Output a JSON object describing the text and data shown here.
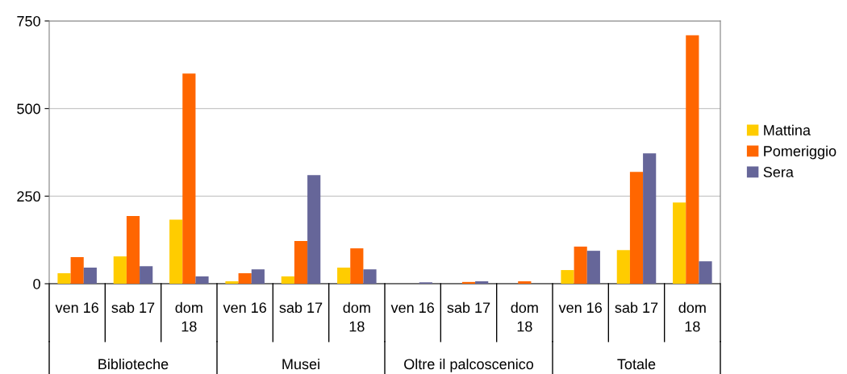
{
  "chart_data": {
    "type": "bar",
    "categories": [
      "ven 16",
      "sab 17",
      "dom\n18",
      "ven 16",
      "sab 17",
      "dom\n18",
      "ven 16",
      "sab 17",
      "dom\n18",
      "ven 16",
      "sab 17",
      "dom\n18"
    ],
    "annotations": [
      "Biblioteche",
      "Musei",
      "Oltre il palcoscenico",
      "Totale"
    ],
    "series": [
      {
        "name": "Mattina",
        "color": "#ffcc00",
        "values": [
          30,
          78,
          183,
          7,
          21,
          46,
          0,
          0,
          0,
          39,
          96,
          232
        ]
      },
      {
        "name": "Pomeriggio",
        "color": "#ff6600",
        "values": [
          76,
          193,
          600,
          30,
          122,
          101,
          0,
          5,
          7,
          106,
          319,
          709
        ]
      },
      {
        "name": "Sera",
        "color": "#666699",
        "values": [
          46,
          50,
          21,
          41,
          310,
          41,
          4,
          7,
          0,
          94,
          372,
          64
        ]
      }
    ],
    "ylim": [
      0,
      750
    ],
    "yticks": [
      0,
      250,
      500,
      750
    ],
    "grid": "y",
    "legend": "right"
  }
}
